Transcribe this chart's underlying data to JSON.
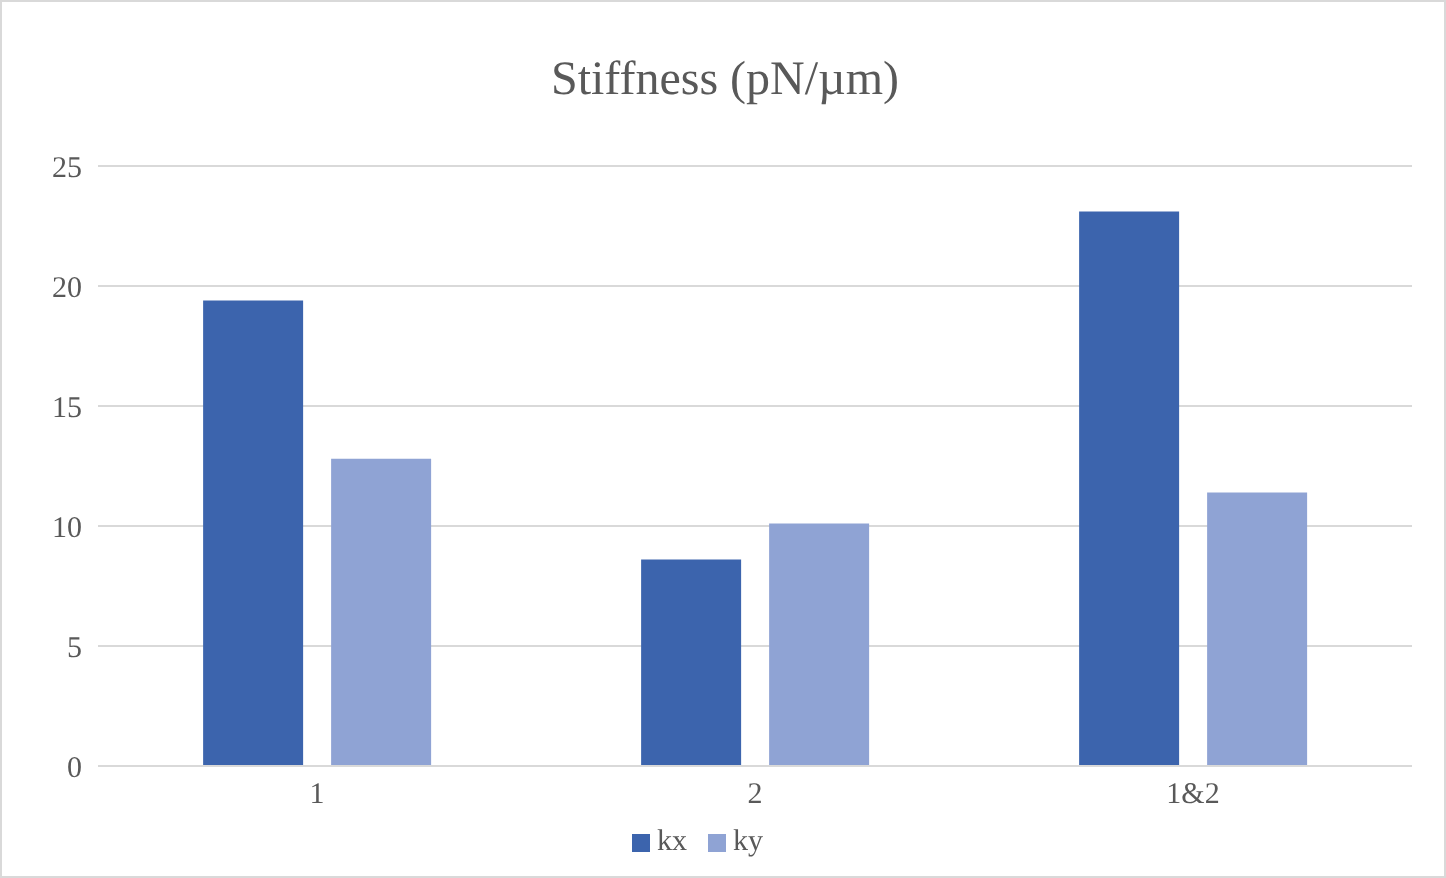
{
  "chart_data": {
    "type": "bar",
    "title": "Stiffness (pN/µm)",
    "categories": [
      "1",
      "2",
      "1&2"
    ],
    "series": [
      {
        "name": "kx",
        "color": "#3c64ad",
        "values": [
          19.4,
          8.6,
          23.1
        ]
      },
      {
        "name": "ky",
        "color": "#8fa3d4",
        "values": [
          12.8,
          10.1,
          11.4
        ]
      }
    ],
    "ylim": [
      0,
      25
    ],
    "yticks": [
      0,
      5,
      10,
      15,
      20,
      25
    ],
    "grid": "y",
    "legend": "bottom"
  }
}
